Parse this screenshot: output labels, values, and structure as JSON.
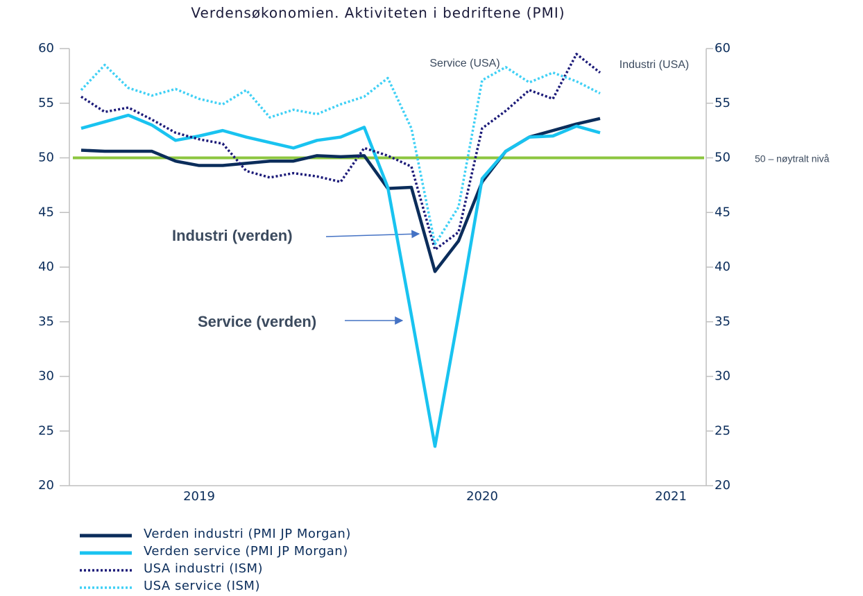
{
  "chart_data": {
    "type": "line",
    "title": "Verdensøkonomien. Aktiviteten i bedriftene (PMI)",
    "categories": [
      null,
      null,
      null,
      null,
      null,
      "2019",
      null,
      null,
      null,
      null,
      null,
      null,
      null,
      null,
      null,
      null,
      null,
      "2020",
      null,
      null,
      null,
      null,
      null,
      null,
      null,
      "2021",
      null
    ],
    "series": [
      {
        "name": "Verden industri (PMI JP Morgan)",
        "color": "#0b2d5b",
        "style": "solid",
        "values": [
          50.7,
          50.6,
          50.6,
          50.6,
          49.7,
          49.3,
          49.3,
          49.5,
          49.7,
          49.7,
          50.2,
          50.1,
          50.2,
          47.2,
          47.3,
          39.6,
          42.4,
          47.8,
          50.6,
          51.9,
          52.5,
          53.1,
          53.6,
          null,
          null,
          null,
          null
        ]
      },
      {
        "name": "Verden service (PMI JP Morgan)",
        "color": "#19c3f0",
        "style": "solid",
        "values": [
          52.7,
          53.3,
          53.9,
          53.0,
          51.6,
          52.0,
          52.5,
          51.9,
          51.4,
          50.9,
          51.6,
          51.9,
          52.8,
          47.3,
          35.6,
          23.6,
          35.6,
          48.1,
          50.6,
          51.9,
          52.0,
          52.9,
          52.3,
          null,
          null,
          null,
          null
        ]
      },
      {
        "name": "USA industri (ISM)",
        "color": "#1b1a78",
        "style": "dotted",
        "values": [
          55.6,
          54.2,
          54.6,
          53.5,
          52.3,
          51.7,
          51.3,
          48.8,
          48.2,
          48.6,
          48.3,
          47.8,
          50.9,
          50.2,
          49.2,
          41.6,
          43.2,
          52.7,
          54.3,
          56.2,
          55.4,
          59.5,
          57.8,
          null,
          null,
          null,
          null
        ]
      },
      {
        "name": "USA service (ISM)",
        "color": "#3fd0f5",
        "style": "dotted",
        "values": [
          56.2,
          58.5,
          56.4,
          55.7,
          56.3,
          55.4,
          54.9,
          56.2,
          53.7,
          54.4,
          54.0,
          54.9,
          55.6,
          57.3,
          52.7,
          42.1,
          45.5,
          57.1,
          58.3,
          56.9,
          57.8,
          57.0,
          55.9,
          null,
          null,
          null,
          null
        ]
      }
    ],
    "ylim": [
      20,
      60
    ],
    "yticks": [
      20,
      25,
      30,
      35,
      40,
      45,
      50,
      55,
      60
    ],
    "y2lim": [
      20,
      60
    ],
    "y2ticks": [
      20,
      25,
      30,
      35,
      40,
      45,
      50,
      55,
      60
    ],
    "reference_line": {
      "value": 50,
      "color": "#8cc63f",
      "label": "50 – nøytralt nivå"
    },
    "annotations": [
      "Service (USA)",
      "Industri (USA)",
      "Industri (verden)",
      "Service (verden)"
    ],
    "legend": "bottom-left"
  }
}
